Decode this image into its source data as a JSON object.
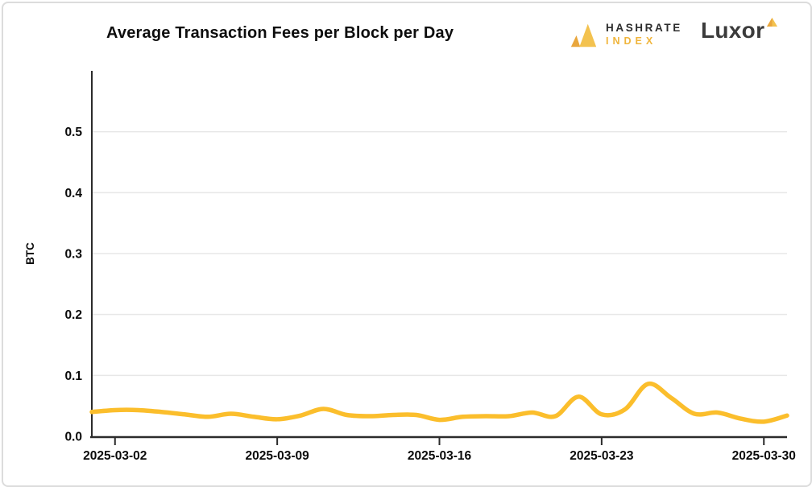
{
  "header": {
    "title": "Average Transaction Fees per Block per Day",
    "hashrate_brand_top": "HASHRATE",
    "hashrate_brand_bottom": "INDEX",
    "luxor_brand": "Luxor"
  },
  "brand_colors": {
    "mark_dark": "#E9A63C",
    "mark_light": "#F3C24F",
    "index_text": "#F0B53C",
    "luxor_text": "#3B3B3B"
  },
  "chart_data": {
    "type": "line",
    "title": "Average Transaction Fees per Block per Day",
    "xlabel": "",
    "ylabel": "BTC",
    "line_color": "#FBBE2C",
    "grid": "horizontal-only",
    "grid_color": "#e7e7e7",
    "axis_color": "#2b2b2b",
    "tick_label_color": "#0a0a0a",
    "ylim": [
      0,
      0.6
    ],
    "yticks": [
      0.0,
      0.1,
      0.2,
      0.3,
      0.4,
      0.5
    ],
    "ytick_labels": [
      "0.0",
      "0.1",
      "0.2",
      "0.3",
      "0.4",
      "0.5"
    ],
    "xtick_labels": [
      "2025-03-02",
      "2025-03-09",
      "2025-03-16",
      "2025-03-23",
      "2025-03-30"
    ],
    "xtick_indices": [
      1,
      8,
      15,
      22,
      29
    ],
    "x": [
      "2025-03-01",
      "2025-03-02",
      "2025-03-03",
      "2025-03-04",
      "2025-03-05",
      "2025-03-06",
      "2025-03-07",
      "2025-03-08",
      "2025-03-09",
      "2025-03-10",
      "2025-03-11",
      "2025-03-12",
      "2025-03-13",
      "2025-03-14",
      "2025-03-15",
      "2025-03-16",
      "2025-03-17",
      "2025-03-18",
      "2025-03-19",
      "2025-03-20",
      "2025-03-21",
      "2025-03-22",
      "2025-03-23",
      "2025-03-24",
      "2025-03-25",
      "2025-03-26",
      "2025-03-27",
      "2025-03-28",
      "2025-03-29",
      "2025-03-30",
      "2025-03-31"
    ],
    "values": [
      0.04,
      0.043,
      0.043,
      0.04,
      0.036,
      0.032,
      0.037,
      0.032,
      0.028,
      0.034,
      0.045,
      0.035,
      0.033,
      0.035,
      0.035,
      0.027,
      0.032,
      0.033,
      0.033,
      0.039,
      0.033,
      0.065,
      0.036,
      0.044,
      0.086,
      0.063,
      0.037,
      0.039,
      0.029,
      0.024,
      0.034
    ]
  }
}
